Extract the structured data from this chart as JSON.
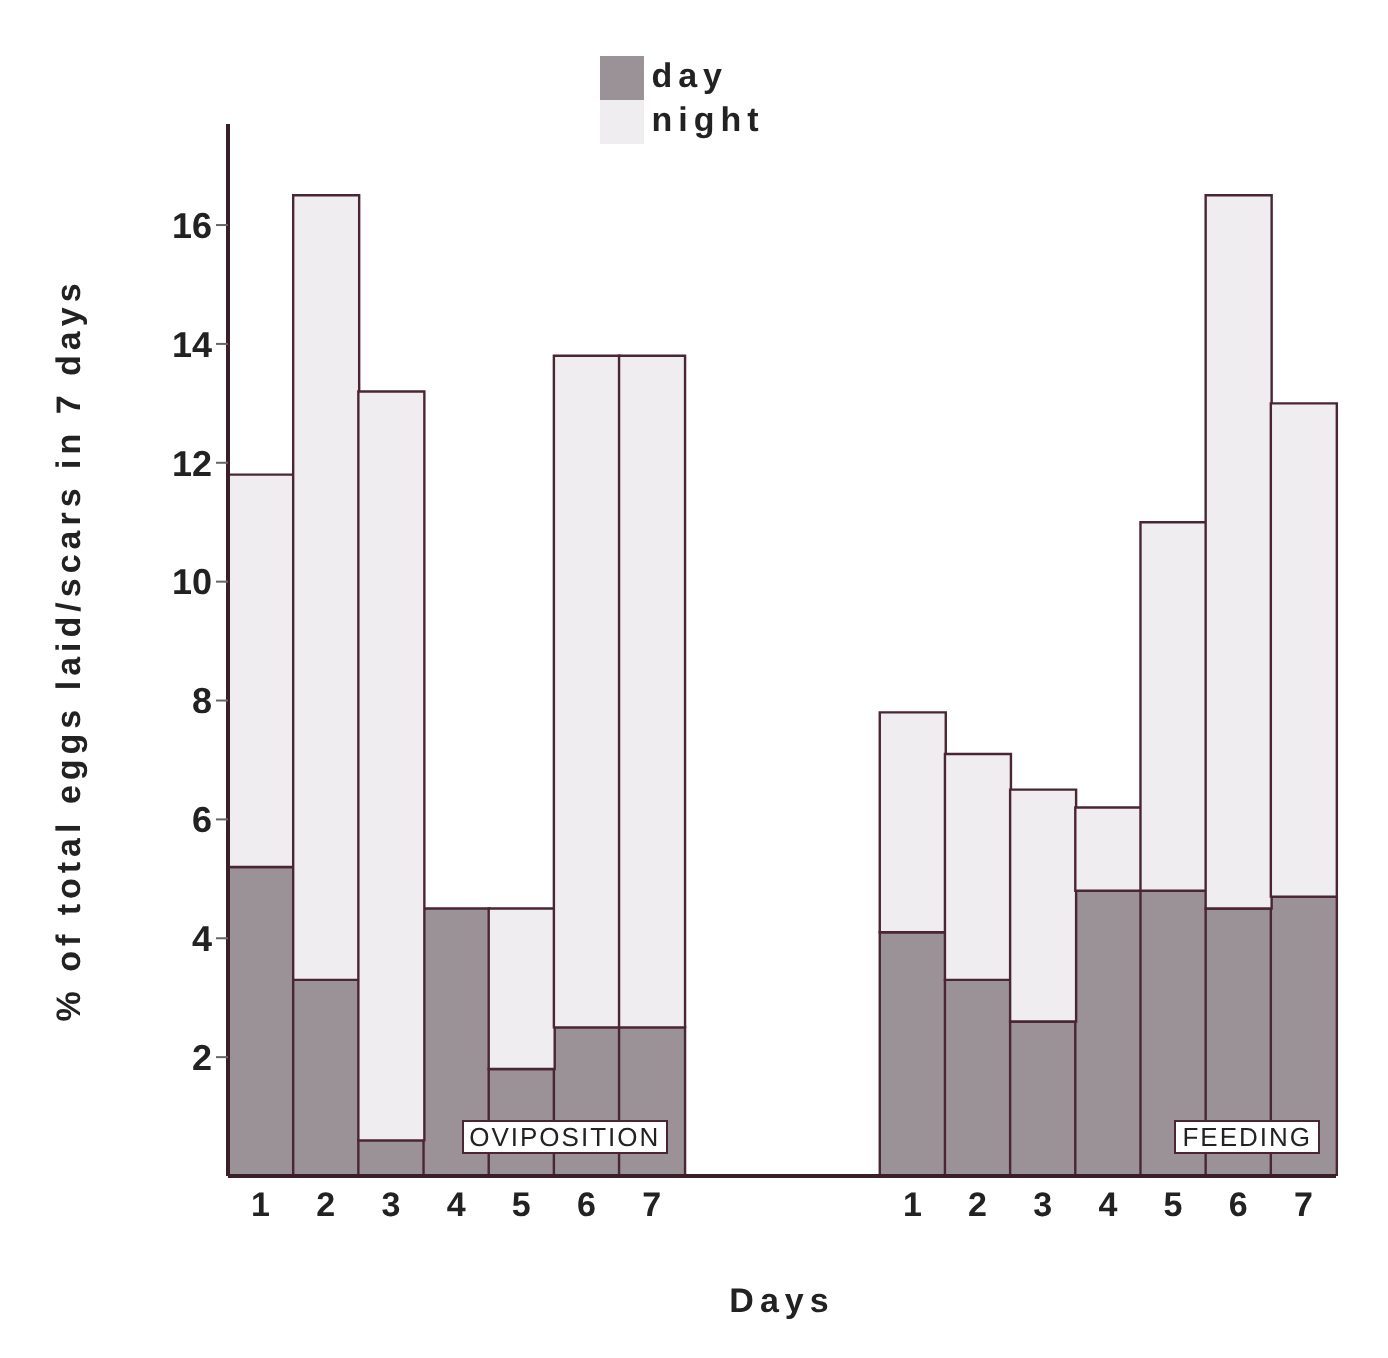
{
  "chart_data": {
    "type": "bar",
    "stacked": true,
    "xlabel": "Days",
    "ylabel": "% of total eggs laid/scars in 7 days",
    "categories": [
      "1",
      "2",
      "3",
      "4",
      "5",
      "6",
      "7",
      null,
      null,
      null,
      "1",
      "2",
      "3",
      "4",
      "5",
      "6",
      "7"
    ],
    "series": [
      {
        "name": "day",
        "color": "#9b9297",
        "values": [
          5.2,
          3.3,
          0.6,
          4.5,
          1.8,
          2.5,
          2.5,
          null,
          null,
          null,
          4.1,
          3.3,
          2.6,
          4.8,
          4.8,
          4.5,
          4.7
        ]
      },
      {
        "name": "night",
        "color": "#efedf0",
        "values": [
          6.6,
          13.2,
          12.6,
          0,
          2.7,
          11.3,
          11.3,
          null,
          null,
          null,
          3.7,
          3.8,
          3.9,
          1.4,
          6.2,
          12.0,
          8.3
        ]
      }
    ],
    "ylim": [
      0,
      17.7
    ],
    "yticks": [
      2,
      4,
      6,
      8,
      10,
      12,
      14,
      16
    ],
    "legend": "top",
    "annotations": [
      "OVIPOSITION",
      "FEEDING"
    ]
  }
}
